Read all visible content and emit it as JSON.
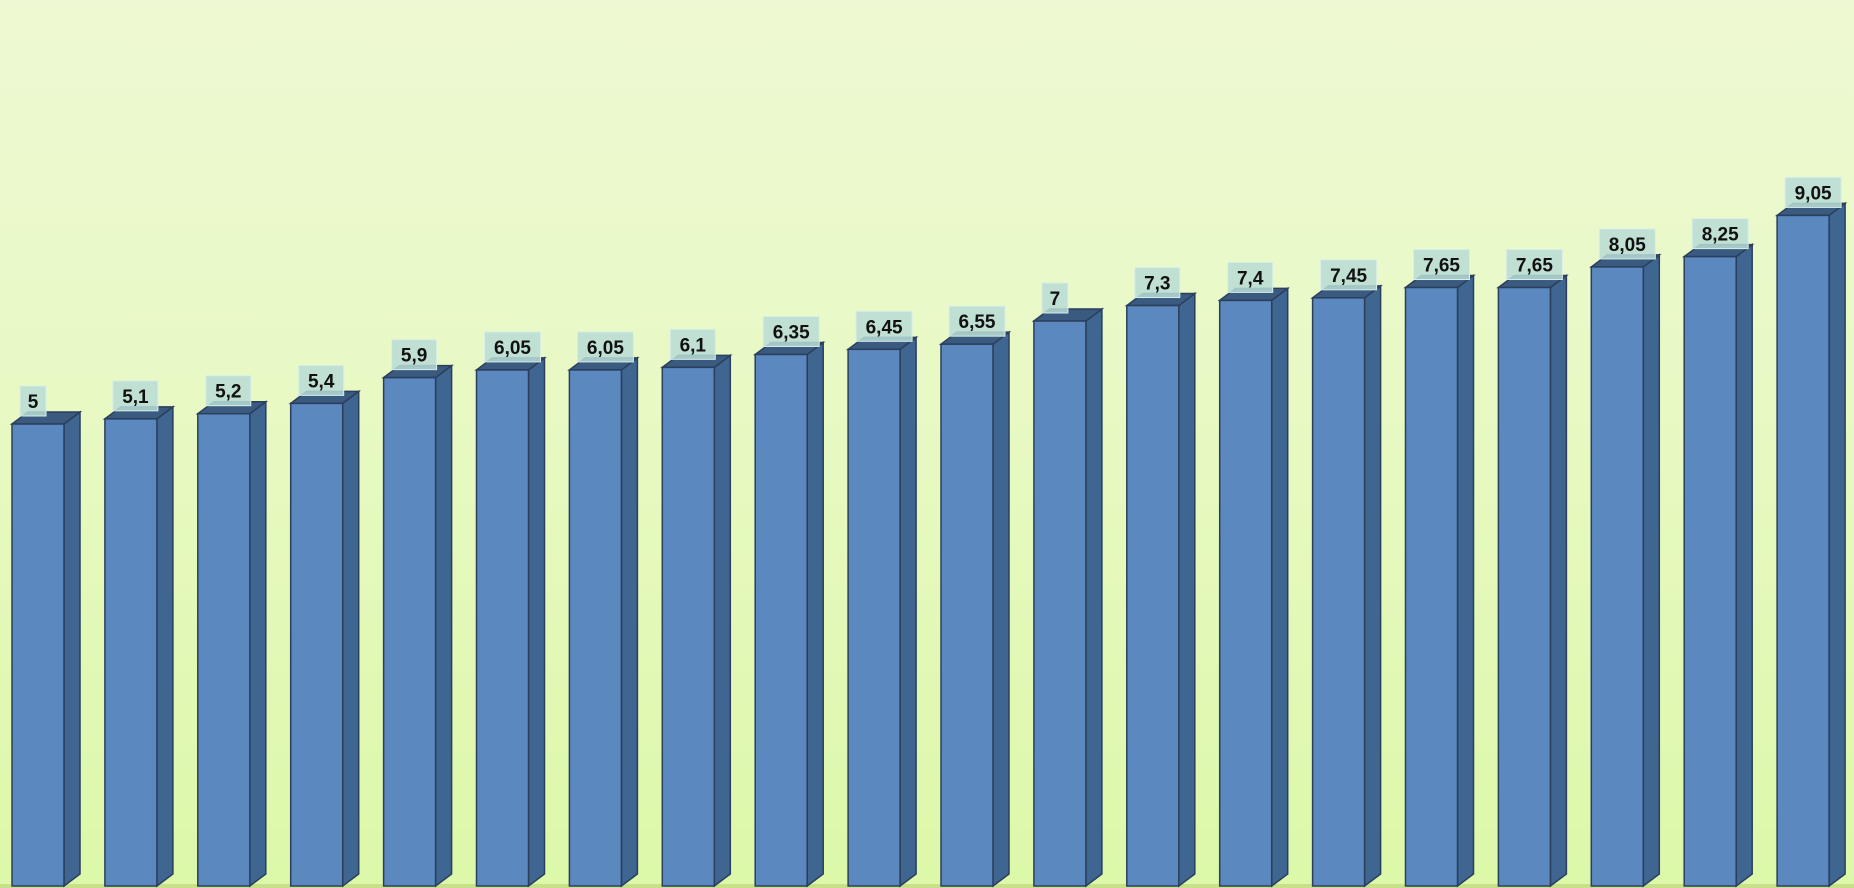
{
  "chart_data": {
    "type": "bar",
    "style": "3d-column",
    "values": [
      5,
      5.1,
      5.2,
      5.4,
      5.9,
      6.05,
      6.05,
      6.1,
      6.35,
      6.45,
      6.55,
      7,
      7.3,
      7.4,
      7.45,
      7.65,
      7.65,
      8.05,
      8.25,
      9.05
    ],
    "data_labels": [
      "5",
      "5,1",
      "5,2",
      "5,4",
      "5,9",
      "6,05",
      "6,05",
      "6,1",
      "6,35",
      "6,45",
      "6,55",
      "7",
      "7,3",
      "7,4",
      "7,45",
      "7,65",
      "7,65",
      "8,05",
      "8,25",
      "9,05"
    ],
    "title": "",
    "xlabel": "",
    "ylabel": "",
    "grid": false,
    "legend": "none",
    "colors": {
      "bar_front": "#5a88bf",
      "bar_side": "#3f6591",
      "bar_top": "#3a5a80",
      "bar_edge": "#2b3f5c",
      "label_box": "#b9dcd6",
      "floor": "#c9e08a"
    }
  }
}
